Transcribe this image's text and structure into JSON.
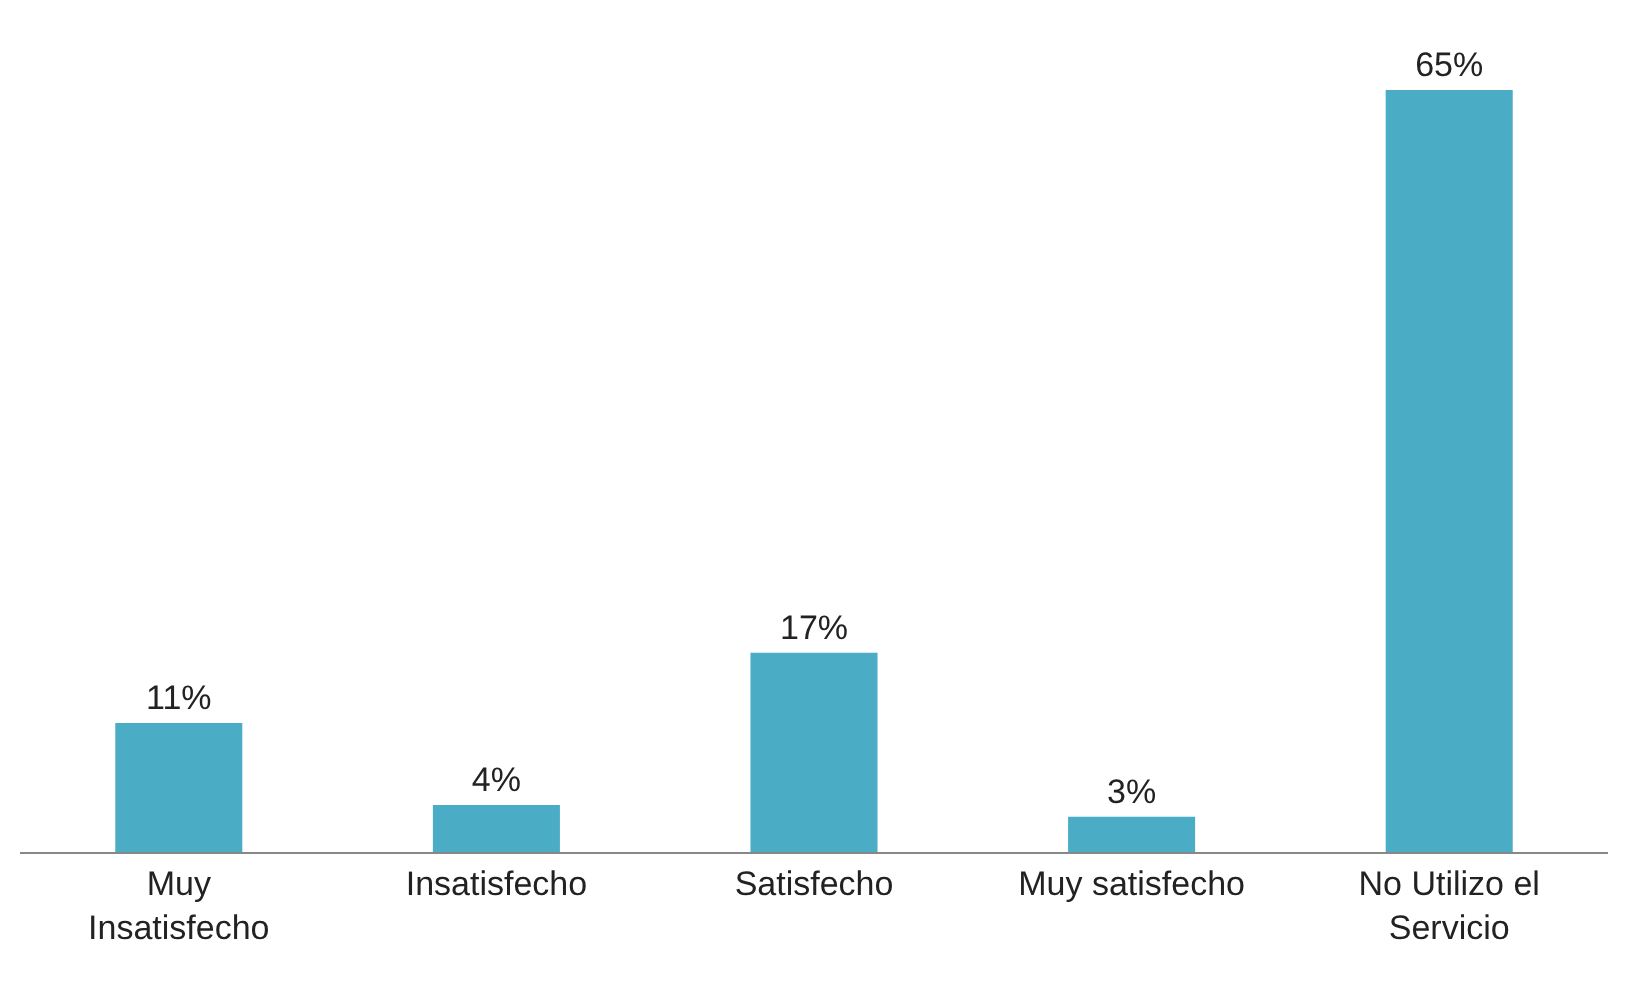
{
  "chart_data": {
    "type": "bar",
    "categories": [
      "Muy\nInsatisfecho",
      "Insatisfecho",
      "Satisfecho",
      "Muy satisfecho",
      "No Utilizo el\nServicio"
    ],
    "values": [
      11,
      4,
      17,
      3,
      65
    ],
    "color": "#4bacc6",
    "value_labels": [
      "11%",
      "4%",
      "17%",
      "3%",
      "65%"
    ],
    "legend": false
  }
}
